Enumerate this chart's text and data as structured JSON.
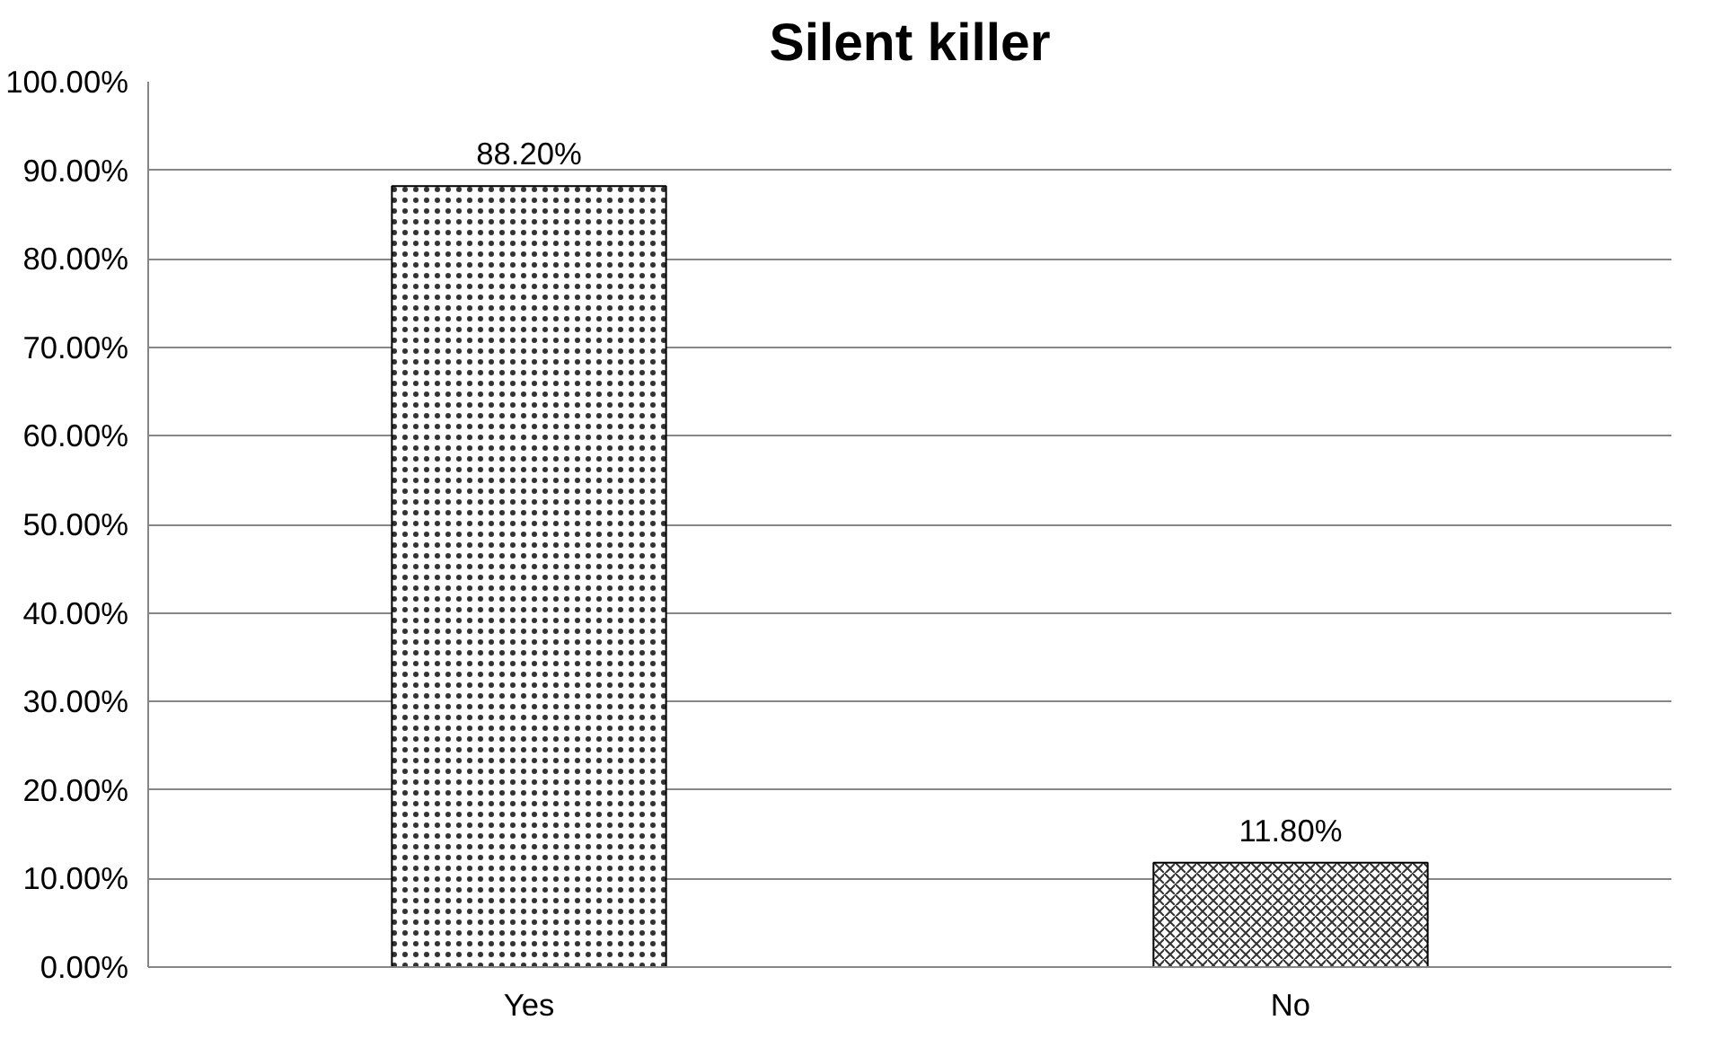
{
  "chart_data": {
    "type": "bar",
    "title": "Silent killer",
    "categories": [
      "Yes",
      "No"
    ],
    "values": [
      88.2,
      11.8
    ],
    "color": "#000000",
    "value_labels": [
      "88.20%",
      "11.80%"
    ],
    "ylim": [
      0,
      100
    ],
    "yticks": [
      {
        "value": 0,
        "label": "0.00%"
      },
      {
        "value": 10,
        "label": "10.00%"
      },
      {
        "value": 20,
        "label": "20.00%"
      },
      {
        "value": 30,
        "label": "30.00%"
      },
      {
        "value": 40,
        "label": "40.00%"
      },
      {
        "value": 50,
        "label": "50.00%"
      },
      {
        "value": 60,
        "label": "60.00%"
      },
      {
        "value": 70,
        "label": "70.00%"
      },
      {
        "value": 80,
        "label": "80.00%"
      },
      {
        "value": 90,
        "label": "90.00%"
      },
      {
        "value": 100,
        "label": "100.00%"
      }
    ],
    "grid": "y"
  }
}
